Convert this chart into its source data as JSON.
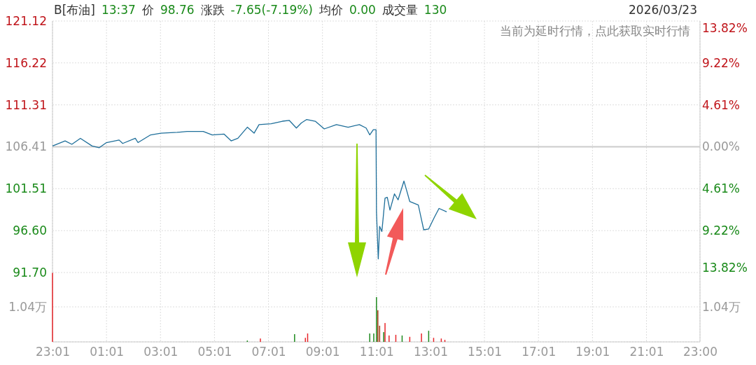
{
  "chart_data": [
    {
      "type": "line",
      "title": "B[布油] 13:37 价 98.76 涨跌 -7.65(-7.19%) 均价 0.00 成交量 130",
      "subtitle": "2026/03/23",
      "annotations": [
        "当前为延时行情，点此获取实时行情"
      ],
      "xlim": [
        "2026-03-22T23:01",
        "2026-03-23T23:00"
      ],
      "xticks": [
        {
          "value": "2026-03-22T23:01",
          "label": null
        },
        {
          "value": "2026-03-23T01:01",
          "label": null
        },
        {
          "value": "2026-03-23T03:01",
          "label": null
        },
        {
          "value": "2026-03-23T05:01",
          "label": null
        },
        {
          "value": "2026-03-23T07:01",
          "label": null
        },
        {
          "value": "2026-03-23T09:01",
          "label": null
        },
        {
          "value": "2026-03-23T11:01",
          "label": null
        },
        {
          "value": "2026-03-23T13:01",
          "label": null
        },
        {
          "value": "2026-03-23T15:01",
          "label": null
        },
        {
          "value": "2026-03-23T17:01",
          "label": null
        },
        {
          "value": "2026-03-23T19:01",
          "label": null
        },
        {
          "value": "2026-03-23T21:01",
          "label": null
        },
        {
          "value": "2026-03-23T23:00",
          "label": null
        }
      ],
      "ylim": [
        91.7,
        121.12
      ],
      "yticks": [
        {
          "value": 91.7,
          "label": "91.70"
        },
        {
          "value": 96.6,
          "label": "96.60"
        },
        101.51,
        106.41,
        111.31,
        116.22,
        121.12
      ],
      "y2lim": [
        -13.82,
        13.82
      ],
      "y2ticks": [
        {
          "value": -13.82,
          "label": "13.82%"
        },
        {
          "value": -9.22,
          "label": "9.22%"
        },
        {
          "value": -4.61,
          "label": "4.61%"
        },
        {
          "value": 0,
          "label": "0.00%"
        },
        {
          "value": 4.61,
          "label": "4.61%"
        },
        {
          "value": 9.22,
          "label": "9.22%"
        },
        {
          "value": 13.82,
          "label": "13.82%"
        }
      ],
      "tick_labels": "y",
      "grid": true,
      "ref_lines": [
        {
          "axis": "y",
          "value": 106.41,
          "color": "#cccccc"
        }
      ],
      "series": [
        {
          "color": "#1f6f9a",
          "x": [
            "2026-03-22T23:01",
            "2026-03-22T23:29",
            "2026-03-22T23:44",
            "2026-03-23T00:03",
            "2026-03-23T00:29",
            "2026-03-23T00:45",
            "2026-03-23T01:01",
            "2026-03-23T01:29",
            "2026-03-23T01:37",
            "2026-03-23T02:05",
            "2026-03-23T02:11",
            "2026-03-23T02:39",
            "2026-03-23T03:02",
            "2026-03-23T03:38",
            "2026-03-23T04:00",
            "2026-03-23T04:36",
            "2026-03-23T04:56",
            "2026-03-23T05:22",
            "2026-03-23T05:38",
            "2026-03-23T05:53",
            "2026-03-23T06:14",
            "2026-03-23T06:29",
            "2026-03-23T06:40",
            "2026-03-23T07:07",
            "2026-03-23T07:32",
            "2026-03-23T07:47",
            "2026-03-23T08:03",
            "2026-03-23T08:14",
            "2026-03-23T08:26",
            "2026-03-23T08:45",
            "2026-03-23T09:05",
            "2026-03-23T09:32",
            "2026-03-23T09:58",
            "2026-03-23T10:23",
            "2026-03-23T10:38",
            "2026-03-23T10:46",
            "2026-03-23T10:54",
            "2026-03-23T11:00",
            "2026-03-23T11:01",
            "2026-03-23T11:05",
            "2026-03-23T11:08",
            "2026-03-23T11:13",
            "2026-03-23T11:20",
            "2026-03-23T11:25",
            "2026-03-23T11:31",
            "2026-03-23T11:41",
            "2026-03-23T11:49",
            "2026-03-23T12:02",
            "2026-03-23T12:07",
            "2026-03-23T12:15",
            "2026-03-23T12:34",
            "2026-03-23T12:41",
            "2026-03-23T12:46",
            "2026-03-23T12:57",
            "2026-03-23T13:10",
            "2026-03-23T13:20",
            "2026-03-23T13:37"
          ],
          "values": [
            106.5,
            107.1,
            106.7,
            107.4,
            106.5,
            106.3,
            106.9,
            107.2,
            106.8,
            107.4,
            106.9,
            107.8,
            108.0,
            108.1,
            108.2,
            108.2,
            107.8,
            107.9,
            107.1,
            107.4,
            108.7,
            108.0,
            109.0,
            109.1,
            109.4,
            109.5,
            108.6,
            109.2,
            109.6,
            109.4,
            108.5,
            109.0,
            108.7,
            109.0,
            108.6,
            107.8,
            108.4,
            108.4,
            98.8,
            93.3,
            97.1,
            96.5,
            100.4,
            100.5,
            99.0,
            100.9,
            100.2,
            102.4,
            101.5,
            100.0,
            99.6,
            97.9,
            96.7,
            96.8,
            98.2,
            99.2,
            98.8
          ]
        }
      ]
    },
    {
      "type": "bar",
      "annotations": [
        "1.04万"
      ],
      "xlim": [
        "2026-03-22T23:01",
        "2026-03-23T23:00"
      ],
      "xticks": [
        {
          "value": "2026-03-22T23:01",
          "label": "23:01"
        },
        {
          "value": "2026-03-23T01:01",
          "label": "01:01"
        },
        {
          "value": "2026-03-23T03:01",
          "label": "03:01"
        },
        {
          "value": "2026-03-23T05:01",
          "label": "05:01"
        },
        {
          "value": "2026-03-23T07:01",
          "label": "07:01"
        },
        {
          "value": "2026-03-23T09:01",
          "label": "09:01"
        },
        {
          "value": "2026-03-23T11:01",
          "label": "11:01"
        },
        {
          "value": "2026-03-23T13:01",
          "label": "13:01"
        },
        {
          "value": "2026-03-23T15:01",
          "label": "15:01"
        },
        {
          "value": "2026-03-23T17:01",
          "label": "17:01"
        },
        {
          "value": "2026-03-23T19:01",
          "label": "19:01"
        },
        {
          "value": "2026-03-23T21:01",
          "label": "21:01"
        },
        {
          "value": "2026-03-23T23:00",
          "label": "23:00"
        }
      ],
      "ylim": [
        0,
        2.06
      ],
      "yticks": [
        {
          "value": 0,
          "label": null
        },
        {
          "value": 1.04,
          "label": "1.04万"
        }
      ],
      "grid": true,
      "series": [
        {
          "x": [
            "2026-03-22T23:01",
            "2026-03-23T06:14",
            "2026-03-23T06:43",
            "2026-03-23T07:59",
            "2026-03-23T08:23",
            "2026-03-23T08:28",
            "2026-03-23T10:46",
            "2026-03-23T10:55",
            "2026-03-23T11:01",
            "2026-03-23T11:04",
            "2026-03-23T11:08",
            "2026-03-23T11:17",
            "2026-03-23T11:20",
            "2026-03-23T11:29",
            "2026-03-23T11:44",
            "2026-03-23T11:58",
            "2026-03-23T12:15",
            "2026-03-23T12:41",
            "2026-03-23T12:57",
            "2026-03-23T13:08",
            "2026-03-23T13:25",
            "2026-03-23T13:33"
          ],
          "values": [
            2.05,
            0.04,
            0.1,
            0.23,
            0.12,
            0.25,
            0.25,
            0.25,
            1.33,
            0.94,
            0.48,
            0.29,
            0.56,
            0.19,
            0.21,
            0.19,
            0.15,
            0.25,
            0.33,
            0.12,
            0.1,
            0.06
          ],
          "colors": [
            "#e8262b",
            "#1e8a1e",
            "#e8262b",
            "#1e8a1e",
            "#e8262b",
            "#e8262b",
            "#1e8a1e",
            "#1e8a1e",
            "#1e8a1e",
            "#a03a12",
            "#a03a12",
            "#1e8a1e",
            "#e8262b",
            "#e8262b",
            "#e8262b",
            "#1e8a1e",
            "#e8262b",
            "#e8262b",
            "#1e8a1e",
            "#e8262b",
            "#e8262b",
            "#e8262b"
          ]
        }
      ]
    }
  ]
}
